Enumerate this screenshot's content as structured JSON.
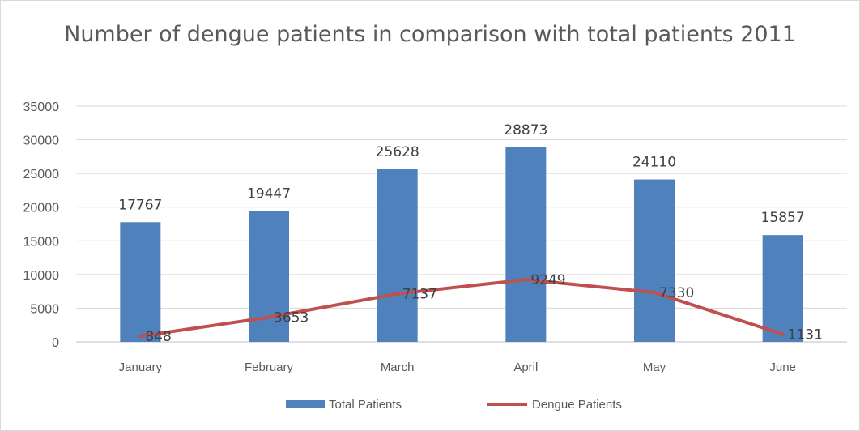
{
  "chart_data": {
    "type": "bar",
    "title": "Number of dengue patients in comparison with total patients 2011",
    "categories": [
      "January",
      "February",
      "March",
      "April",
      "May",
      "June"
    ],
    "series": [
      {
        "name": "Total Patients",
        "type": "bar",
        "color": "#4f81bd",
        "values": [
          17767,
          19447,
          25628,
          28873,
          24110,
          15857
        ],
        "labels": [
          "17767",
          "19447",
          "25628",
          "28873",
          "24110",
          "15857"
        ]
      },
      {
        "name": "Dengue Patients",
        "type": "line",
        "color": "#c0504d",
        "values": [
          848,
          3653,
          7137,
          9249,
          7330,
          1131
        ],
        "labels": [
          "848",
          "3653",
          "7137",
          "9249",
          "7330",
          "1131"
        ]
      }
    ],
    "ylim": [
      0,
      35000
    ],
    "yticks": [
      0,
      5000,
      10000,
      15000,
      20000,
      25000,
      30000,
      35000
    ],
    "ytick_labels": [
      "0",
      "5000",
      "10000",
      "15000",
      "20000",
      "25000",
      "30000",
      "35000"
    ],
    "grid": true,
    "legend": "bottom"
  }
}
